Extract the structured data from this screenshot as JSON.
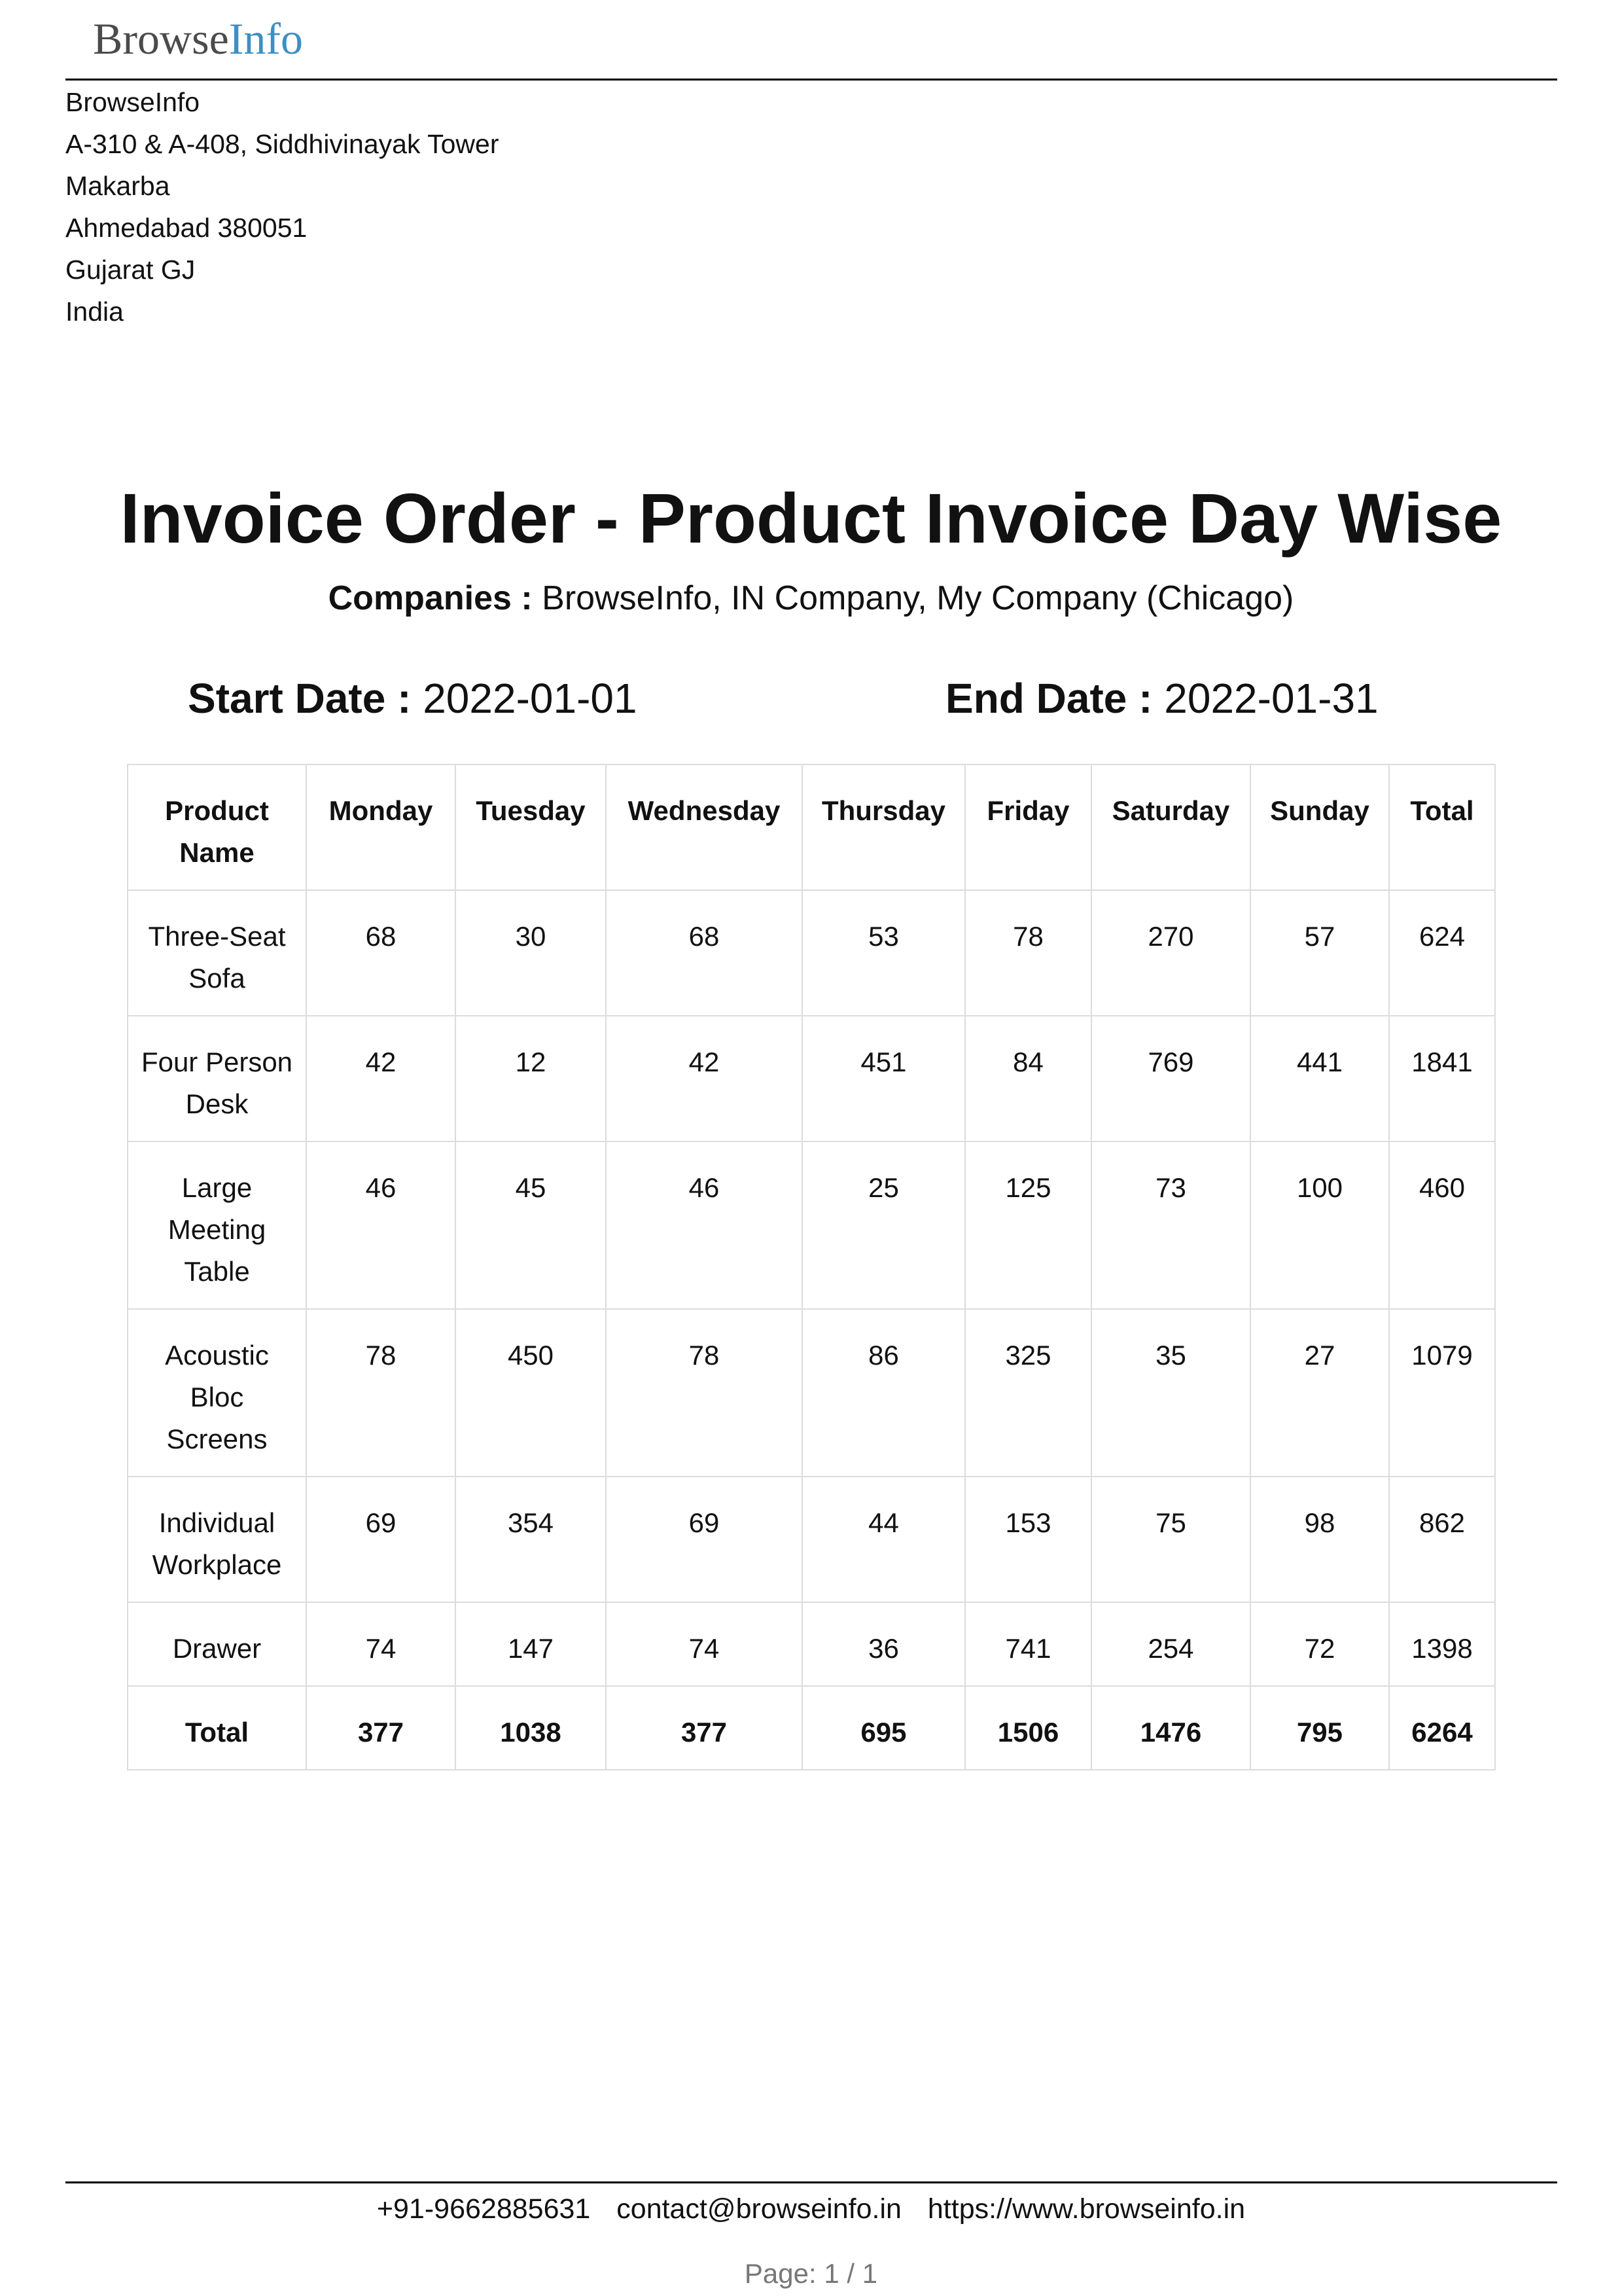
{
  "header": {
    "logo_part1": "Browse",
    "logo_part2": "Info",
    "colors": {
      "logo_dark": "#4b4b4b",
      "logo_blue": "#3d8fc4"
    }
  },
  "address": {
    "lines": [
      "BrowseInfo",
      "A-310 & A-408, Siddhivinayak Tower",
      "Makarba",
      "Ahmedabad 380051",
      "Gujarat GJ",
      "India"
    ]
  },
  "report": {
    "title": "Invoice Order - Product Invoice Day Wise",
    "companies_label": "Companies :",
    "companies_value": "BrowseInfo, IN Company, My Company (Chicago)",
    "start_label": "Start Date :",
    "start_value": "2022-01-01",
    "end_label": "End Date :",
    "end_value": "2022-01-31"
  },
  "table": {
    "headers": [
      "Product Name",
      "Monday",
      "Tuesday",
      "Wednesday",
      "Thursday",
      "Friday",
      "Saturday",
      "Sunday",
      "Total"
    ],
    "rows": [
      [
        "Three-Seat Sofa",
        "68",
        "30",
        "68",
        "53",
        "78",
        "270",
        "57",
        "624"
      ],
      [
        "Four Person Desk",
        "42",
        "12",
        "42",
        "451",
        "84",
        "769",
        "441",
        "1841"
      ],
      [
        "Large Meeting Table",
        "46",
        "45",
        "46",
        "25",
        "125",
        "73",
        "100",
        "460"
      ],
      [
        "Acoustic Bloc Screens",
        "78",
        "450",
        "78",
        "86",
        "325",
        "35",
        "27",
        "1079"
      ],
      [
        "Individual Workplace",
        "69",
        "354",
        "69",
        "44",
        "153",
        "75",
        "98",
        "862"
      ],
      [
        "Drawer",
        "74",
        "147",
        "74",
        "36",
        "741",
        "254",
        "72",
        "1398"
      ]
    ],
    "total_row": [
      "Total",
      "377",
      "1038",
      "377",
      "695",
      "1506",
      "1476",
      "795",
      "6264"
    ]
  },
  "footer": {
    "phone": "+91-9662885631",
    "email": "contact@browseinfo.in",
    "website": "https://www.browseinfo.in",
    "page": "Page: 1 / 1"
  }
}
